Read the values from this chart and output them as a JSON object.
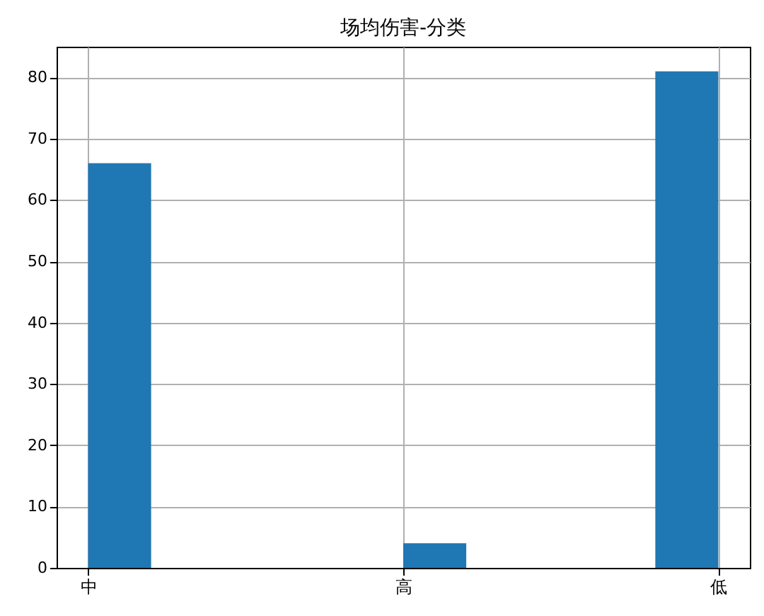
{
  "chart_data": {
    "type": "bar",
    "title": "场均伤害-分类",
    "categories": [
      "中",
      "高",
      "低"
    ],
    "values": [
      66,
      4,
      81
    ],
    "color": "#1f77b4",
    "ylim": [
      0,
      85
    ],
    "yticks": [
      0,
      10,
      20,
      30,
      40,
      50,
      60,
      70,
      80
    ],
    "grid": true
  }
}
